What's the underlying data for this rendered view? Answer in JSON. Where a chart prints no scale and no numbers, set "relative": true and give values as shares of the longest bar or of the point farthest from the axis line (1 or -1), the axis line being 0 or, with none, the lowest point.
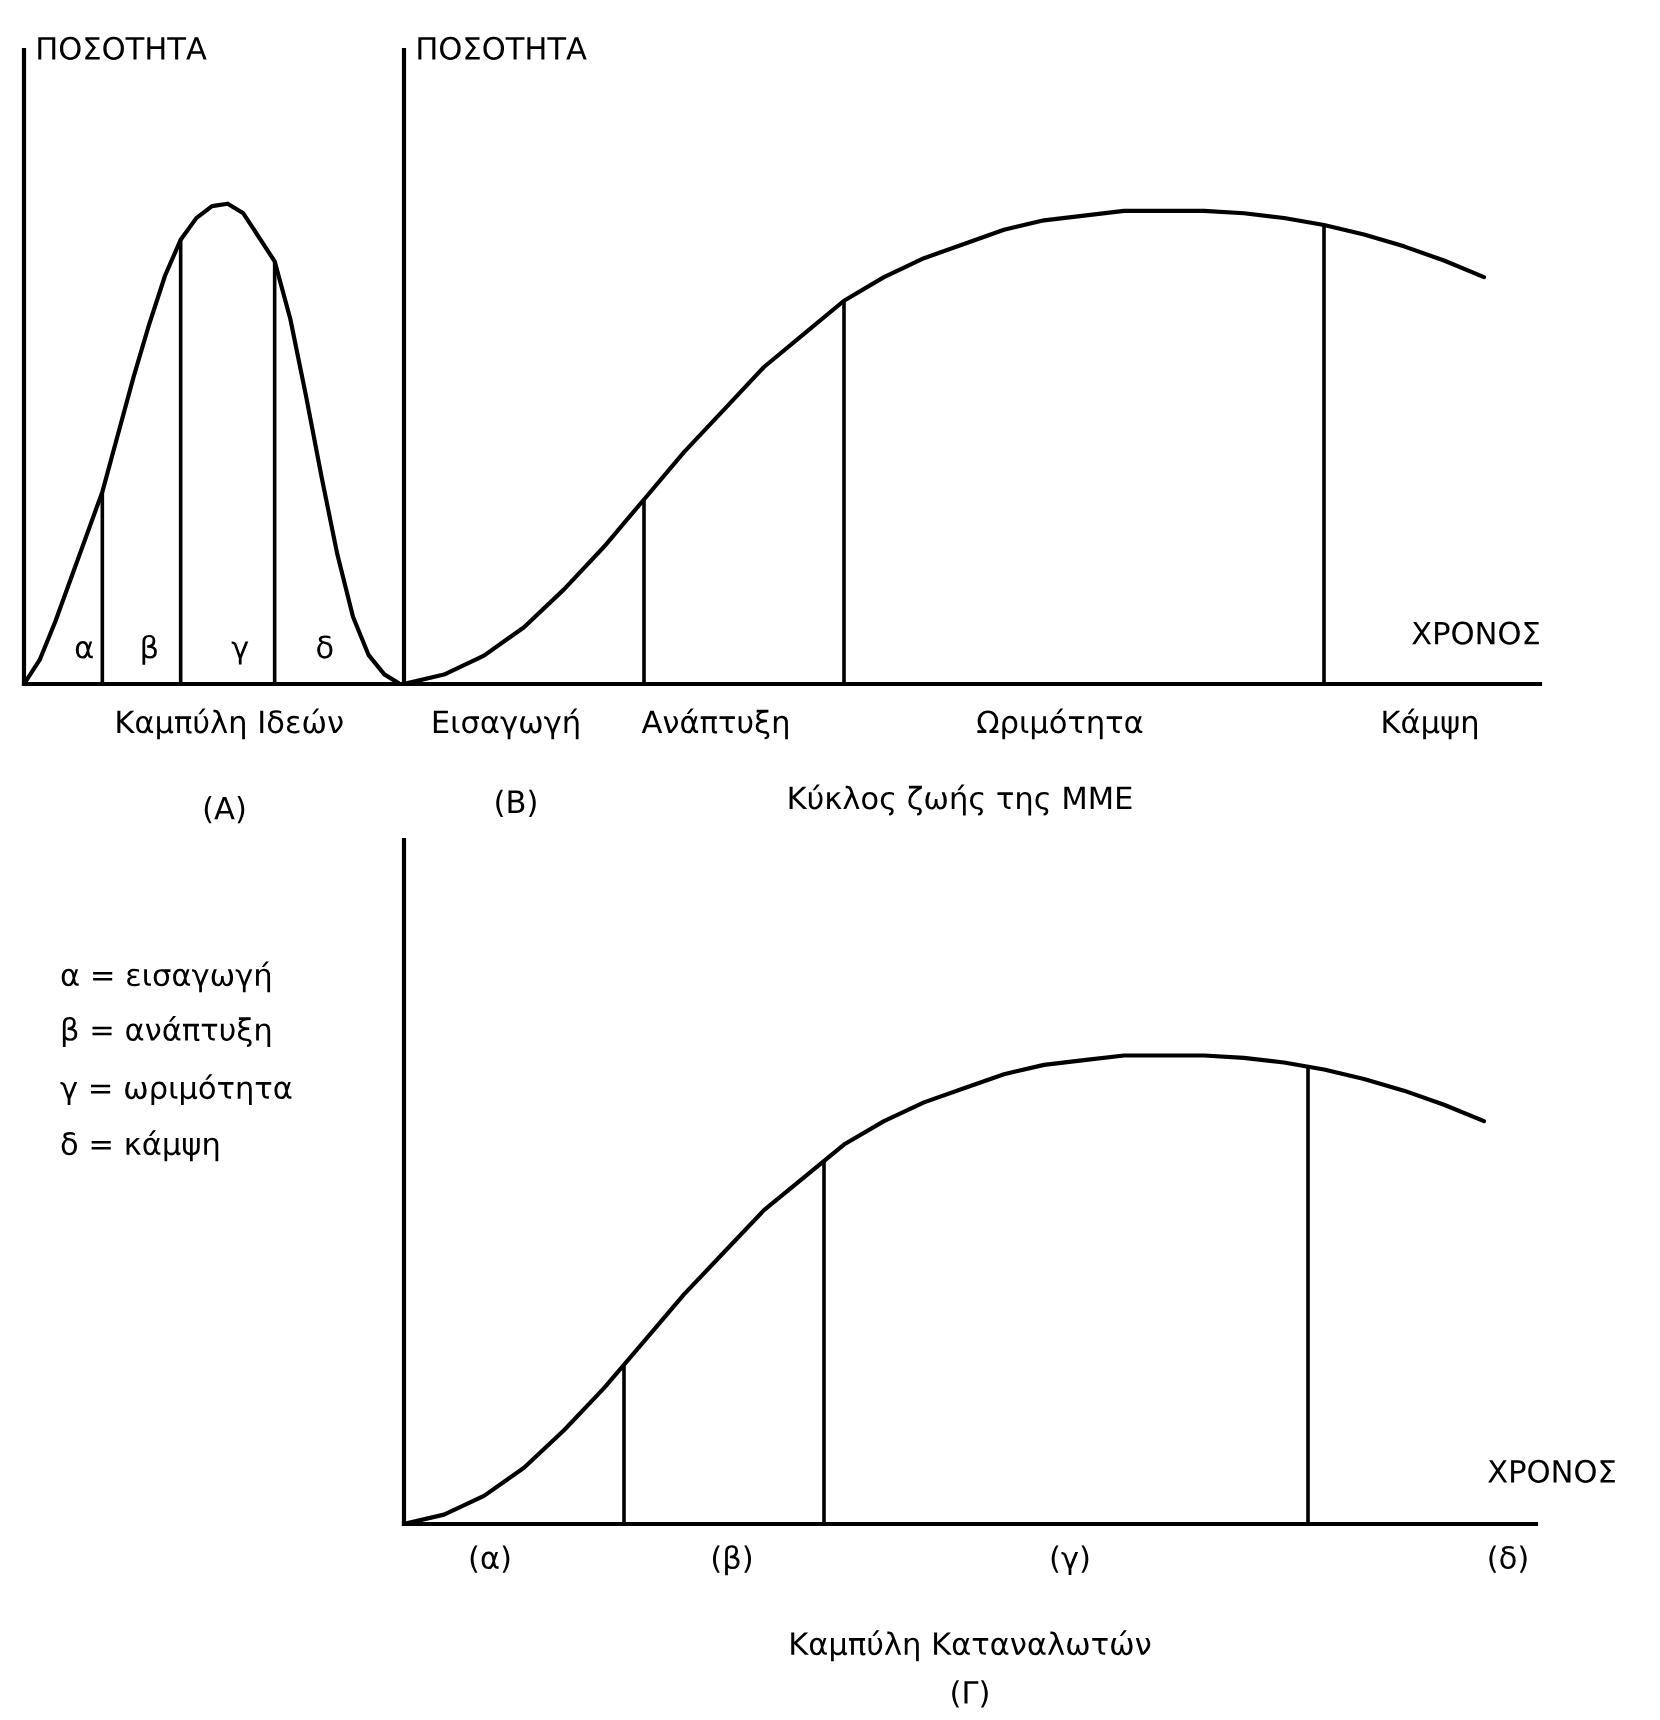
{
  "chart_data": [
    {
      "type": "line",
      "relative": true,
      "tick_labels": false,
      "ylabel": "ΠΟΣΟΤΗΤΑ",
      "xlabel": "Καμπύλη Ιδεών",
      "categories": [
        null,
        null,
        null,
        null,
        null,
        null,
        null,
        null,
        null,
        null,
        null,
        null,
        null,
        null,
        null,
        null,
        null,
        null,
        null,
        null,
        null,
        null,
        null,
        null,
        null
      ],
      "series": [
        {
          "color": "#000000",
          "values": [
            0,
            0.05,
            0.13,
            0.22,
            0.31,
            0.4,
            0.52,
            0.64,
            0.75,
            0.85,
            0.925,
            0.97,
            0.995,
            1.0,
            0.98,
            0.93,
            0.88,
            0.76,
            0.6,
            0.43,
            0.27,
            0.14,
            0.06,
            0.02,
            0
          ]
        }
      ],
      "annotations": [
        "α",
        "β",
        "γ",
        "δ",
        "(Α)"
      ]
    },
    {
      "type": "line",
      "relative": true,
      "tick_labels": false,
      "ylabel": "ΠΟΣΟΤΗΤΑ",
      "xlabel": "Κύκλος ζωής της ΜΜΕ",
      "categories": [
        null,
        null,
        null,
        null,
        null,
        null,
        null,
        null,
        null,
        null,
        null,
        null,
        null,
        null,
        null,
        null,
        null,
        null,
        null,
        null,
        null,
        null,
        null,
        null,
        null,
        null,
        null,
        null
      ],
      "series": [
        {
          "color": "#000000",
          "values": [
            0,
            0.02,
            0.06,
            0.12,
            0.2,
            0.29,
            0.39,
            0.49,
            0.58,
            0.67,
            0.74,
            0.81,
            0.86,
            0.9,
            0.93,
            0.96,
            0.98,
            0.99,
            1.0,
            1.0,
            1.0,
            0.995,
            0.985,
            0.97,
            0.95,
            0.925,
            0.895,
            0.86
          ]
        }
      ],
      "annotations": [
        "Εισαγωγή",
        "Ανάπτυξη",
        "Ωριμότητα",
        "Κάμψη",
        "ΧΡΟΝΟΣ",
        "(Β)"
      ]
    },
    {
      "type": "line",
      "relative": true,
      "tick_labels": false,
      "xlabel": "Καμπύλη Καταναλωτών",
      "categories": [
        null,
        null,
        null,
        null,
        null,
        null,
        null,
        null,
        null,
        null,
        null,
        null,
        null,
        null,
        null,
        null,
        null,
        null,
        null,
        null,
        null,
        null,
        null,
        null,
        null,
        null,
        null,
        null
      ],
      "series": [
        {
          "color": "#000000",
          "values": [
            0,
            0.02,
            0.06,
            0.12,
            0.2,
            0.29,
            0.39,
            0.49,
            0.58,
            0.67,
            0.74,
            0.81,
            0.86,
            0.9,
            0.93,
            0.96,
            0.98,
            0.99,
            1.0,
            1.0,
            1.0,
            0.995,
            0.985,
            0.97,
            0.95,
            0.925,
            0.895,
            0.86
          ]
        }
      ],
      "annotations": [
        "(α)",
        "(β)",
        "(γ)",
        "(δ)",
        "ΧΡΟΝΟΣ",
        "(Γ)",
        "α = εισαγωγή",
        "β = ανάπτυξη",
        "γ = ωριμότητα",
        "δ = κάμψη"
      ]
    }
  ]
}
